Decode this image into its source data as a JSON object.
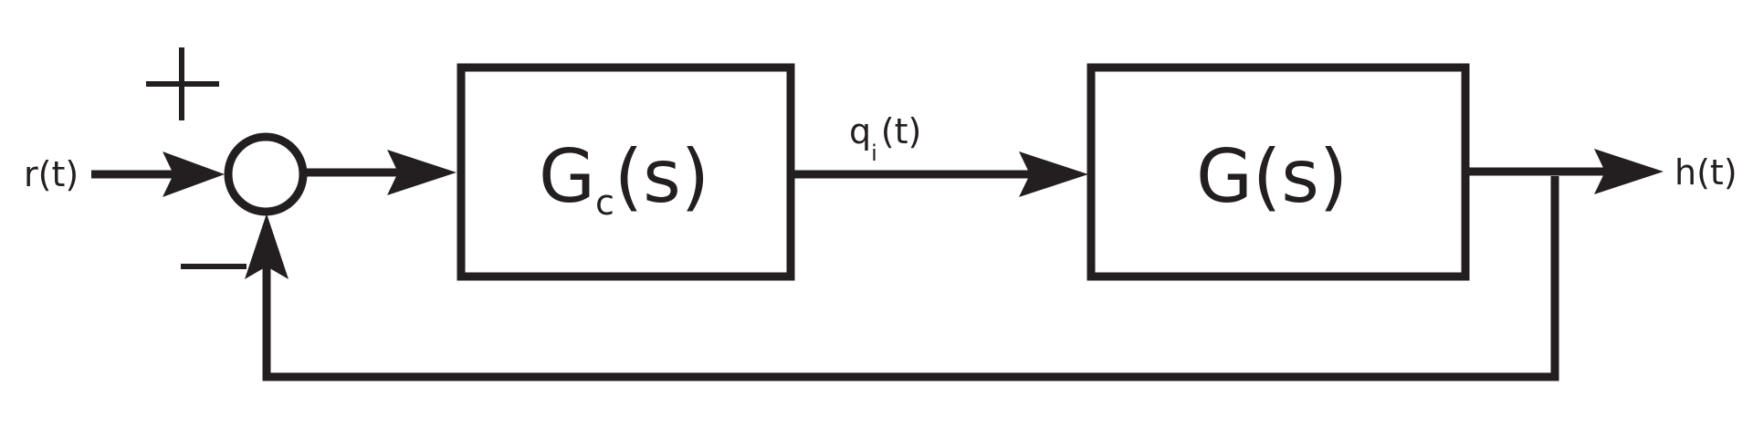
{
  "colors": {
    "stroke": "#231f20",
    "background": "#ffffff"
  },
  "signals": {
    "input": {
      "base": "r",
      "paren": "(t)"
    },
    "intermediate": {
      "base": "q",
      "sub": "i",
      "paren": "(t)"
    },
    "output": {
      "base": "h",
      "paren": "(t)"
    }
  },
  "summing_junction": {
    "plus_sign": "+",
    "minus_sign": "−"
  },
  "blocks": {
    "controller": {
      "base": "G",
      "sub": "c",
      "paren": "(s)"
    },
    "plant": {
      "base": "G",
      "paren": "(s)"
    }
  }
}
